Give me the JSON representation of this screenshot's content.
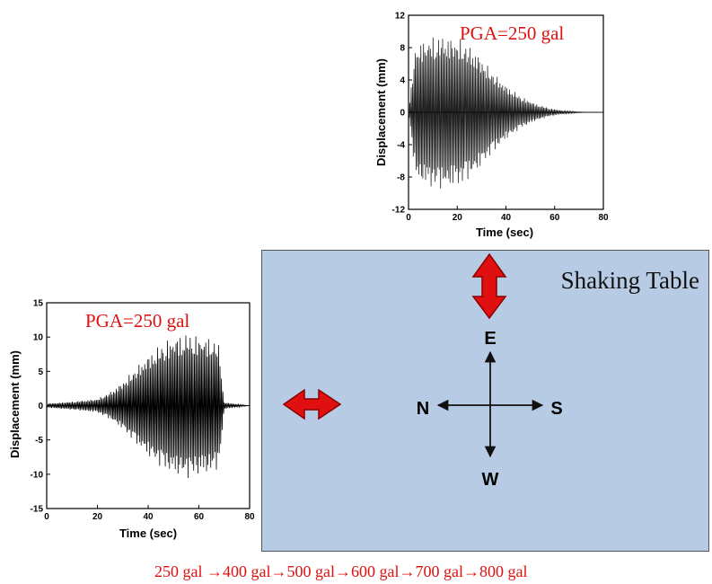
{
  "shaking_table": {
    "title": "Shaking Table"
  },
  "directions": {
    "north": "N",
    "south": "S",
    "east": "E",
    "west": "W"
  },
  "sequence_text": "250 gal →400  gal→500  gal→600  gal→700  gal→800  gal",
  "colors": {
    "table": "#b8cbe4",
    "arrow": "#e01010",
    "annotation": "#e01010"
  },
  "chart_data": [
    {
      "type": "line",
      "title": "",
      "annotation": "PGA=250 gal",
      "xlabel": "Time (sec)",
      "ylabel": "Displacement (mm)",
      "xlim": [
        0,
        80
      ],
      "ylim": [
        -12,
        12
      ],
      "xticks": [
        0,
        20,
        40,
        60,
        80
      ],
      "yticks": [
        -12,
        -8,
        -4,
        0,
        4,
        8,
        12
      ],
      "series": [
        {
          "description_envelope": "oscillating displacement, amplitude envelope (time, mm)",
          "envelope_t": [
            0,
            3,
            8,
            15,
            22,
            28,
            34,
            40,
            46,
            52,
            58,
            64,
            70,
            75
          ],
          "envelope_amp": [
            0,
            8.5,
            9.3,
            9.6,
            9.0,
            7.5,
            5.2,
            3.4,
            2.0,
            1.1,
            0.5,
            0.2,
            0.05,
            0
          ]
        }
      ]
    },
    {
      "type": "line",
      "title": "",
      "annotation": "PGA=250 gal",
      "xlabel": "Time (sec)",
      "ylabel": "Displacement (mm)",
      "xlim": [
        0,
        80
      ],
      "ylim": [
        -15,
        15
      ],
      "xticks": [
        0,
        20,
        40,
        60,
        80
      ],
      "yticks": [
        -15,
        -10,
        -5,
        0,
        5,
        10,
        15
      ],
      "series": [
        {
          "description_envelope": "oscillating displacement, amplitude envelope (time, mm)",
          "envelope_t": [
            0,
            10,
            20,
            25,
            30,
            35,
            40,
            45,
            50,
            55,
            60,
            65,
            68,
            70,
            80
          ],
          "envelope_amp": [
            0.3,
            0.6,
            1.0,
            2.0,
            3.5,
            5.5,
            7.5,
            9.0,
            10.2,
            10.6,
            10.3,
            10.0,
            9.0,
            0.5,
            0
          ]
        }
      ]
    }
  ]
}
